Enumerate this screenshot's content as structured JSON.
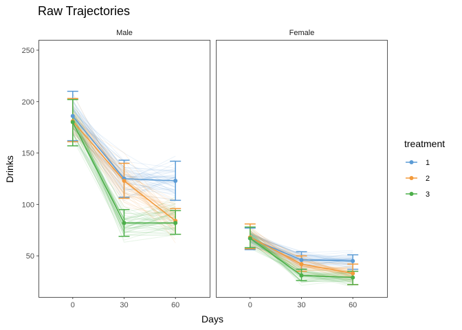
{
  "chart_data": {
    "type": "line",
    "title": "Raw Trajectories",
    "xlabel": "Days",
    "ylabel": "Drinks",
    "x": [
      0,
      30,
      60
    ],
    "x_ticks": [
      "0",
      "30",
      "60"
    ],
    "xlim": [
      -20,
      80
    ],
    "ylim": [
      10,
      260
    ],
    "y_ticks": [
      50,
      100,
      150,
      200,
      250
    ],
    "grid": false,
    "legend": {
      "title": "treatment",
      "position": "right",
      "entries": [
        "1",
        "2",
        "3"
      ]
    },
    "colors": {
      "1": "#5b9bd5",
      "2": "#f39a3b",
      "3": "#4daf4a",
      "panel_border": "#555555",
      "tick": "#4d4d4d"
    },
    "panels": [
      {
        "label": "Male",
        "series": [
          {
            "name": "1",
            "mean": [
              186,
              125,
              123
            ],
            "error_low": [
              162,
              107,
              104
            ],
            "error_high": [
              210,
              143,
              142
            ]
          },
          {
            "name": "2",
            "mean": [
              181,
              123,
              84
            ],
            "error_low": [
              161,
              106,
              71
            ],
            "error_high": [
              203,
              140,
              96
            ]
          },
          {
            "name": "3",
            "mean": [
              180,
              82,
              82
            ],
            "error_low": [
              157,
              69,
              71
            ],
            "error_high": [
              202,
              95,
              94
            ]
          }
        ]
      },
      {
        "label": "Female",
        "series": [
          {
            "name": "1",
            "mean": [
              67,
              46,
              45
            ],
            "error_low": [
              56,
              37,
              37
            ],
            "error_high": [
              77,
              54,
              51
            ]
          },
          {
            "name": "2",
            "mean": [
              68,
              42,
              33
            ],
            "error_low": [
              57,
              35,
              22
            ],
            "error_high": [
              81,
              50,
              42
            ]
          },
          {
            "name": "3",
            "mean": [
              67,
              31,
              29
            ],
            "error_low": [
              58,
              26,
              22
            ],
            "error_high": [
              78,
              37,
              35
            ]
          }
        ]
      }
    ]
  }
}
